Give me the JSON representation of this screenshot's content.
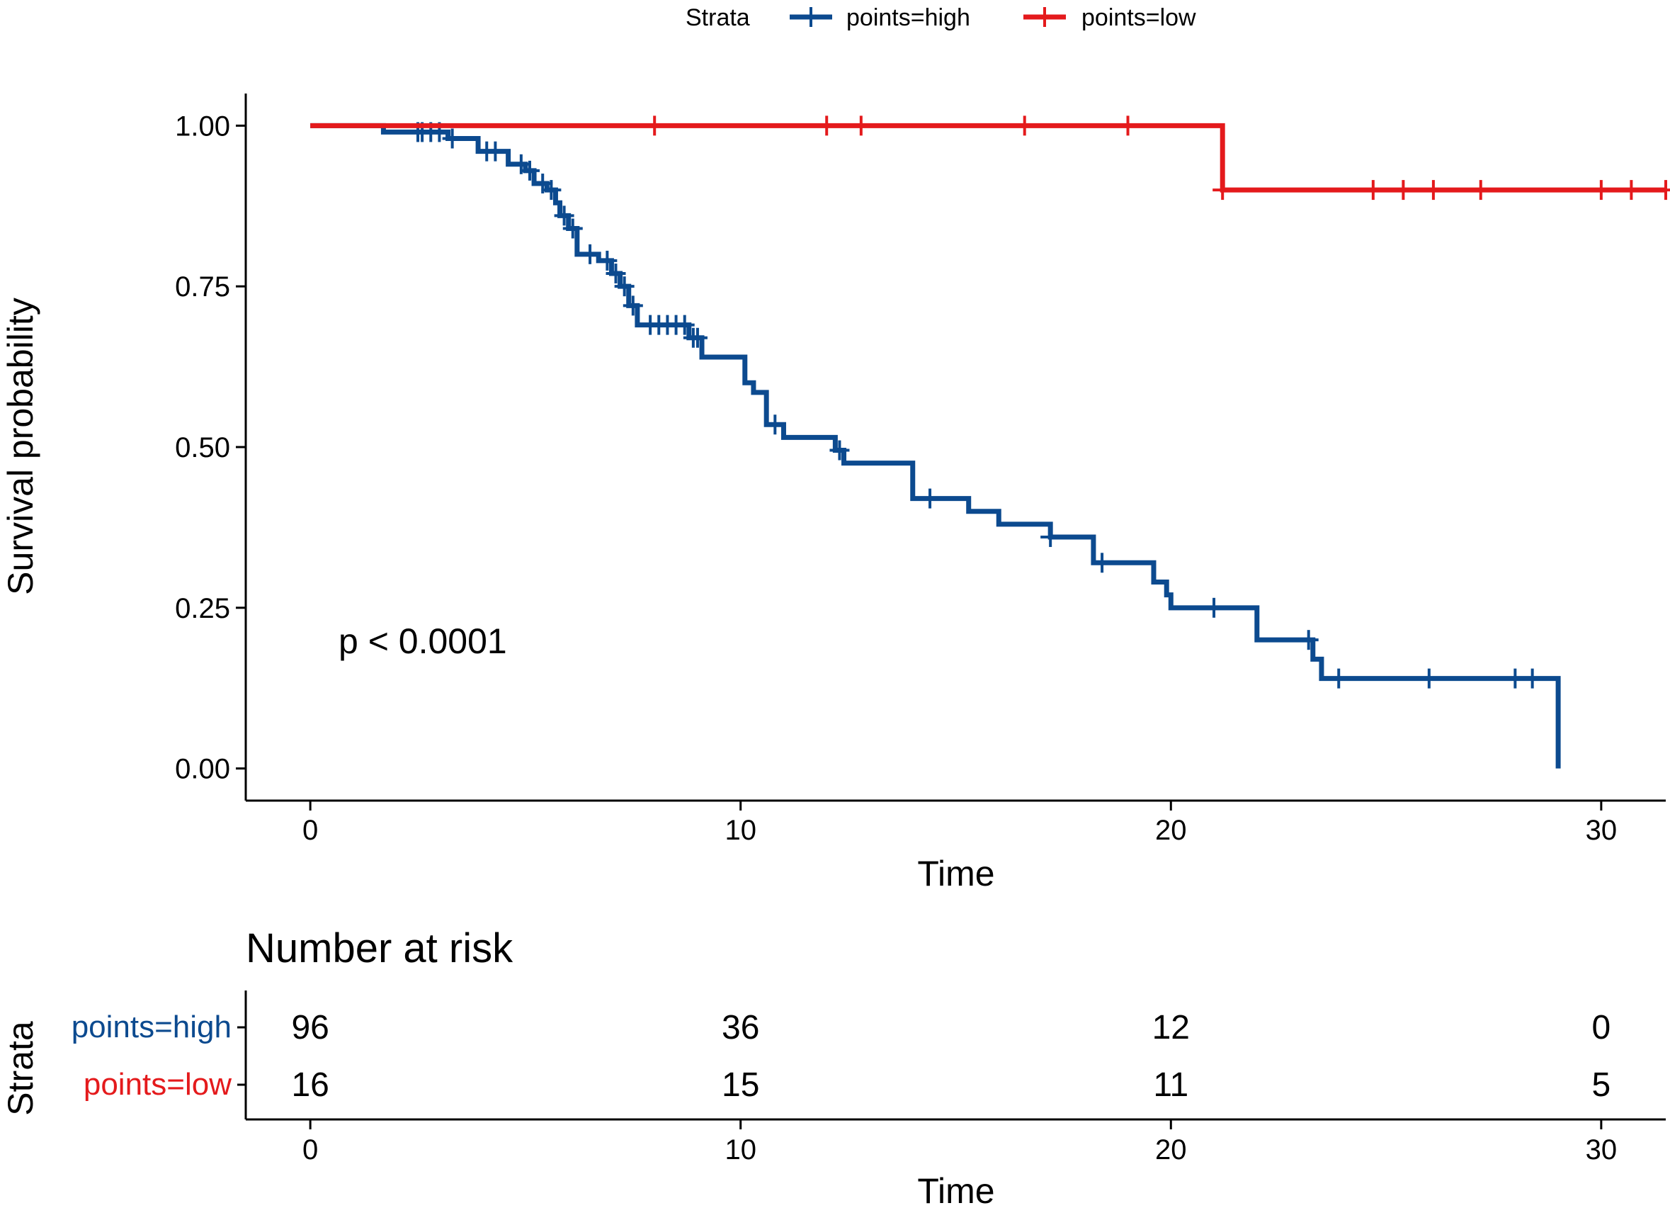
{
  "colors": {
    "high": "#0C4A8F",
    "low": "#E41A1C",
    "axis": "#000000"
  },
  "legend": {
    "title": "Strata",
    "items": [
      {
        "label": "points=high",
        "color_key": "high"
      },
      {
        "label": "points=low",
        "color_key": "low"
      }
    ]
  },
  "annotation": {
    "pvalue": "p < 0.0001"
  },
  "chart_data": {
    "type": "line",
    "subtype": "kaplan-meier step",
    "title": "",
    "xlabel": "Time",
    "ylabel": "Survival probability",
    "xlim": [
      -1.5,
      31.5
    ],
    "ylim": [
      -0.05,
      1.05
    ],
    "xticks": [
      0,
      10,
      20,
      30
    ],
    "xtick_labels": [
      "0",
      "10",
      "20",
      "30"
    ],
    "yticks": [
      0,
      0.25,
      0.5,
      0.75,
      1.0
    ],
    "ytick_labels": [
      "0.00",
      "0.25",
      "0.50",
      "0.75",
      "1.00"
    ],
    "series": [
      {
        "name": "points=high",
        "color_key": "high",
        "steps": [
          [
            0,
            1.0
          ],
          [
            1.7,
            0.99
          ],
          [
            3.2,
            0.98
          ],
          [
            3.9,
            0.96
          ],
          [
            4.6,
            0.94
          ],
          [
            5.0,
            0.93
          ],
          [
            5.2,
            0.91
          ],
          [
            5.5,
            0.9
          ],
          [
            5.7,
            0.88
          ],
          [
            5.8,
            0.86
          ],
          [
            6.0,
            0.84
          ],
          [
            6.2,
            0.8
          ],
          [
            6.7,
            0.79
          ],
          [
            7.0,
            0.77
          ],
          [
            7.2,
            0.75
          ],
          [
            7.4,
            0.72
          ],
          [
            7.6,
            0.69
          ],
          [
            8.8,
            0.67
          ],
          [
            9.1,
            0.64
          ],
          [
            10.1,
            0.6
          ],
          [
            10.3,
            0.585
          ],
          [
            10.6,
            0.535
          ],
          [
            11.0,
            0.515
          ],
          [
            12.2,
            0.495
          ],
          [
            12.4,
            0.475
          ],
          [
            14.0,
            0.42
          ],
          [
            15.3,
            0.4
          ],
          [
            16.0,
            0.38
          ],
          [
            17.2,
            0.36
          ],
          [
            18.2,
            0.32
          ],
          [
            19.6,
            0.29
          ],
          [
            19.9,
            0.27
          ],
          [
            20.0,
            0.25
          ],
          [
            22.0,
            0.2
          ],
          [
            23.3,
            0.17
          ],
          [
            23.5,
            0.14
          ],
          [
            29.0,
            0.0
          ]
        ],
        "censored": [
          2.5,
          2.6,
          2.8,
          3.0,
          3.3,
          4.1,
          4.3,
          4.9,
          5.1,
          5.4,
          5.6,
          5.9,
          6.1,
          6.5,
          6.9,
          7.1,
          7.3,
          7.5,
          7.9,
          8.1,
          8.3,
          8.5,
          8.7,
          8.9,
          9.0,
          10.8,
          12.3,
          14.4,
          17.2,
          18.4,
          21.0,
          23.2,
          23.9,
          26.0,
          28.0,
          28.4
        ],
        "end_time": 29.0
      },
      {
        "name": "points=low",
        "color_key": "low",
        "steps": [
          [
            0,
            1.0
          ],
          [
            21.2,
            0.9
          ]
        ],
        "censored": [
          8.0,
          12.0,
          12.8,
          16.6,
          19.0,
          21.2,
          24.7,
          25.4,
          26.1,
          27.2,
          30.0,
          30.7,
          31.5
        ],
        "end_time": 31.5
      }
    ],
    "risk_table": {
      "title": "Number at risk",
      "ylabel": "Strata",
      "xlabel": "Time",
      "times": [
        0,
        10,
        20,
        30
      ],
      "time_labels": [
        "0",
        "10",
        "20",
        "30"
      ],
      "rows": [
        {
          "label": "points=high",
          "color_key": "high",
          "values": [
            "96",
            "36",
            "12",
            "0"
          ]
        },
        {
          "label": "points=low",
          "color_key": "low",
          "values": [
            "16",
            "15",
            "11",
            "5"
          ]
        }
      ]
    }
  }
}
